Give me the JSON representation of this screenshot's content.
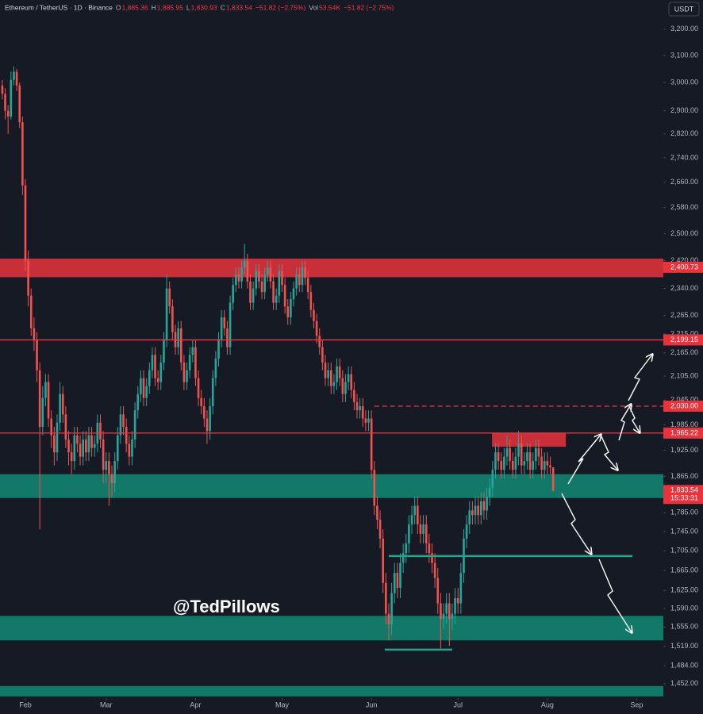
{
  "chart_data": {
    "type": "candlestick",
    "header": [
      {
        "text": "Ethereum / TetherUS · 1D · Binance",
        "color": "#d1d4dc"
      },
      {
        "text": "O",
        "color": "#b2b5be"
      },
      {
        "text": "1,885.36",
        "color": "#f23645"
      },
      {
        "text": "H",
        "color": "#b2b5be"
      },
      {
        "text": "1,885.95",
        "color": "#f23645"
      },
      {
        "text": "L",
        "color": "#b2b5be"
      },
      {
        "text": "1,830.93",
        "color": "#f23645"
      },
      {
        "text": "C",
        "color": "#b2b5be"
      },
      {
        "text": "1,833.54",
        "color": "#f23645"
      },
      {
        "text": "−51.82 (−2.75%)",
        "color": "#f23645"
      },
      {
        "text": "Vol",
        "color": "#b2b5be"
      },
      {
        "text": "53.54K",
        "color": "#f23645"
      },
      {
        "text": "−51.82 (−2.75%)",
        "color": "#f23645"
      }
    ],
    "currency": "USDT",
    "watermark": "@TedPillows",
    "log_scale": true,
    "grid": false,
    "up_color": "#26a69a",
    "down_color": "#ef5350",
    "xlim": [
      -0.8,
      229.2
    ],
    "xticks": [
      {
        "value": 8,
        "label": "Feb"
      },
      {
        "value": 36,
        "label": "Mar"
      },
      {
        "value": 67,
        "label": "Apr"
      },
      {
        "value": 97,
        "label": "May"
      },
      {
        "value": 128,
        "label": "Jun"
      },
      {
        "value": 158,
        "label": "Jul"
      },
      {
        "value": 189,
        "label": "Aug"
      },
      {
        "value": 220,
        "label": "Sep"
      }
    ],
    "ylim": [
      1427,
      3315
    ],
    "yticks": [
      {
        "value": 3200,
        "label": "3,200.00"
      },
      {
        "value": 3100,
        "label": "3,100.00"
      },
      {
        "value": 3000,
        "label": "3,000.00"
      },
      {
        "value": 2900,
        "label": "2,900.00"
      },
      {
        "value": 2820,
        "label": "2,820.00"
      },
      {
        "value": 2740,
        "label": "2,740.00"
      },
      {
        "value": 2660,
        "label": "2,660.00"
      },
      {
        "value": 2580,
        "label": "2,580.00"
      },
      {
        "value": 2500,
        "label": "2,500.00"
      },
      {
        "value": 2420,
        "label": "2,420.00"
      },
      {
        "value": 2340,
        "label": "2,340.00"
      },
      {
        "value": 2265,
        "label": "2,265.00"
      },
      {
        "value": 2215,
        "label": "2,215.00"
      },
      {
        "value": 2165,
        "label": "2,165.00"
      },
      {
        "value": 2105,
        "label": "2,105.00"
      },
      {
        "value": 2045,
        "label": "2,045.00"
      },
      {
        "value": 1985,
        "label": "1,985.00"
      },
      {
        "value": 1925,
        "label": "1,925.00"
      },
      {
        "value": 1865,
        "label": "1,865.00"
      },
      {
        "value": 1785,
        "label": "1,785.00"
      },
      {
        "value": 1745,
        "label": "1,745.00"
      },
      {
        "value": 1705,
        "label": "1,705.00"
      },
      {
        "value": 1665,
        "label": "1,665.00"
      },
      {
        "value": 1625,
        "label": "1,625.00"
      },
      {
        "value": 1590,
        "label": "1,590.00"
      },
      {
        "value": 1555,
        "label": "1,555.00"
      },
      {
        "value": 1519,
        "label": "1,519.00"
      },
      {
        "value": 1484,
        "label": "1,484.00"
      },
      {
        "value": 1452,
        "label": "1,452.00"
      }
    ],
    "zones": [
      {
        "from": 2372,
        "to": 2426,
        "color": "#d8313b"
      },
      {
        "from": 1817,
        "to": 1870,
        "color": "#12806d"
      },
      {
        "from": 1530,
        "to": 1576,
        "color": "#12806d"
      },
      {
        "from": 1430,
        "to": 1448,
        "color": "#12806d"
      },
      {
        "from": 1933,
        "to": 1964,
        "start": 169.8,
        "end": 195.4,
        "color": "#d8313b"
      }
    ],
    "levels": [
      {
        "value": 2199.15,
        "color": "#f23645",
        "style": "solid"
      },
      {
        "value": 2030,
        "color": "#f23645",
        "style": "dashed",
        "start": 129
      },
      {
        "value": 1965.22,
        "color": "#f23645",
        "style": "solid"
      },
      {
        "value": 1694,
        "color": "#1fa58c",
        "style": "solid",
        "start": 134,
        "end": 218.5
      },
      {
        "value": 1513,
        "color": "#1fa58c",
        "style": "solid",
        "start": 132.6,
        "end": 156
      }
    ],
    "price_tags": [
      {
        "value": 2400.73,
        "label": "2,400.73",
        "color": "#e8323c"
      },
      {
        "value": 2199.15,
        "label": "2,199.15",
        "color": "#e8323c"
      },
      {
        "value": 2030,
        "label": "2,030.00",
        "color": "#e8323c"
      },
      {
        "value": 1965.22,
        "label": "1,965.22",
        "color": "#e8323c"
      },
      {
        "value": 1833.54,
        "label": "1,833.54",
        "countdown": "15:33:31",
        "color": "#e8323c"
      }
    ],
    "open": [
      2990,
      2960,
      2900,
      2880,
      3010,
      3040,
      2990,
      2860,
      2650,
      2420,
      2320,
      2230,
      2200,
      2120,
      1980,
      2050,
      2090,
      2000,
      1960,
      1920,
      1990,
      2060,
      2010,
      1950,
      1920,
      1900,
      1960,
      1940,
      1910,
      1950,
      1920,
      1960,
      1930,
      1940,
      1990,
      1950,
      1880,
      1900,
      1870,
      1850,
      1900,
      1960,
      2010,
      1980,
      1940,
      1910,
      1950,
      2020,
      2060,
      2100,
      2050,
      2080,
      2120,
      2160,
      2100,
      2090,
      2140,
      2200,
      2340,
      2290,
      2220,
      2180,
      2230,
      2140,
      2090,
      2120,
      2160,
      2180,
      2100,
      2050,
      2030,
      2000,
      1970,
      2030,
      2100,
      2150,
      2200,
      2260,
      2230,
      2180,
      2300,
      2350,
      2380,
      2360,
      2400,
      2420,
      2360,
      2300,
      2340,
      2390,
      2360,
      2330,
      2380,
      2400,
      2360,
      2300,
      2320,
      2390,
      2350,
      2290,
      2260,
      2310,
      2340,
      2380,
      2350,
      2400,
      2370,
      2330,
      2280,
      2250,
      2210,
      2180,
      2140,
      2100,
      2120,
      2080,
      2090,
      2130,
      2100,
      2060,
      2090,
      2110,
      2070,
      2040,
      2020,
      2030,
      2000,
      1990,
      2000,
      1880,
      1800,
      1770,
      1730,
      1640,
      1580,
      1560,
      1620,
      1660,
      1630,
      1680,
      1700,
      1720,
      1760,
      1780,
      1800,
      1760,
      1740,
      1760,
      1720,
      1700,
      1680,
      1650,
      1600,
      1570,
      1580,
      1600,
      1570,
      1580,
      1610,
      1600,
      1660,
      1730,
      1760,
      1790,
      1780,
      1800,
      1780,
      1810,
      1790,
      1820,
      1840,
      1880,
      1920,
      1900,
      1880,
      1910,
      1930,
      1900,
      1880,
      1910,
      1940,
      1890,
      1900,
      1920,
      1880,
      1900,
      1930,
      1910,
      1880,
      1900,
      1890,
      1885.36
    ],
    "high": [
      3010,
      2980,
      2920,
      3040,
      3060,
      3050,
      3000,
      2880,
      2670,
      2450,
      2340,
      2260,
      2220,
      2140,
      2080,
      2110,
      2110,
      2020,
      1980,
      2010,
      2090,
      2080,
      2030,
      1970,
      1940,
      1980,
      1980,
      1960,
      1970,
      1970,
      1980,
      1980,
      1960,
      2010,
      2010,
      1970,
      1920,
      1920,
      1890,
      1920,
      1980,
      2030,
      2030,
      2000,
      1960,
      1970,
      2040,
      2080,
      2120,
      2120,
      2100,
      2140,
      2180,
      2180,
      2120,
      2160,
      2220,
      2380,
      2360,
      2310,
      2240,
      2250,
      2250,
      2160,
      2140,
      2180,
      2200,
      2200,
      2120,
      2070,
      2050,
      2020,
      2050,
      2120,
      2170,
      2220,
      2280,
      2280,
      2250,
      2320,
      2370,
      2400,
      2400,
      2420,
      2470,
      2440,
      2380,
      2360,
      2410,
      2410,
      2380,
      2400,
      2420,
      2420,
      2380,
      2340,
      2410,
      2410,
      2370,
      2310,
      2330,
      2360,
      2400,
      2400,
      2420,
      2420,
      2390,
      2350,
      2300,
      2270,
      2230,
      2200,
      2160,
      2140,
      2140,
      2110,
      2150,
      2150,
      2120,
      2110,
      2130,
      2130,
      2090,
      2060,
      2050,
      2050,
      2020,
      2020,
      2020,
      1900,
      1820,
      1790,
      1750,
      1660,
      1600,
      1640,
      1680,
      1680,
      1700,
      1720,
      1740,
      1780,
      1800,
      1820,
      1820,
      1780,
      1780,
      1780,
      1740,
      1720,
      1700,
      1670,
      1620,
      1600,
      1620,
      1620,
      1600,
      1630,
      1630,
      1680,
      1750,
      1780,
      1810,
      1810,
      1820,
      1820,
      1830,
      1830,
      1840,
      1860,
      1900,
      1940,
      1940,
      1920,
      1930,
      1960,
      1950,
      1920,
      1930,
      1970,
      1960,
      1920,
      1940,
      1940,
      1920,
      1950,
      1950,
      1930,
      1920,
      1920,
      1910,
      1885.95
    ],
    "low": [
      2940,
      2870,
      2820,
      2870,
      2990,
      2970,
      2840,
      2620,
      2390,
      2290,
      2210,
      2170,
      2090,
      1750,
      1960,
      2030,
      1980,
      1930,
      1890,
      1900,
      1970,
      1990,
      1930,
      1890,
      1870,
      1880,
      1920,
      1890,
      1890,
      1900,
      1900,
      1910,
      1910,
      1920,
      1930,
      1850,
      1850,
      1800,
      1820,
      1830,
      1880,
      1940,
      1960,
      1920,
      1890,
      1890,
      1930,
      2000,
      2040,
      2030,
      2030,
      2060,
      2100,
      2080,
      2070,
      2070,
      2120,
      2180,
      2270,
      2200,
      2160,
      2160,
      2120,
      2070,
      2070,
      2100,
      2140,
      2080,
      2030,
      2010,
      1980,
      1940,
      1950,
      2010,
      2080,
      2130,
      2180,
      2210,
      2160,
      2160,
      2280,
      2330,
      2340,
      2340,
      2380,
      2340,
      2280,
      2280,
      2320,
      2340,
      2310,
      2310,
      2360,
      2340,
      2280,
      2280,
      2300,
      2330,
      2270,
      2240,
      2240,
      2290,
      2320,
      2330,
      2330,
      2350,
      2310,
      2260,
      2230,
      2190,
      2160,
      2120,
      2080,
      2080,
      2060,
      2060,
      2070,
      2080,
      2040,
      2040,
      2070,
      2050,
      2020,
      2000,
      2000,
      1980,
      1970,
      1970,
      1860,
      1780,
      1750,
      1710,
      1620,
      1560,
      1530,
      1540,
      1600,
      1610,
      1610,
      1660,
      1680,
      1700,
      1740,
      1760,
      1740,
      1720,
      1720,
      1700,
      1680,
      1660,
      1630,
      1580,
      1515,
      1550,
      1560,
      1520,
      1550,
      1560,
      1580,
      1580,
      1640,
      1710,
      1740,
      1760,
      1760,
      1760,
      1760,
      1770,
      1770,
      1800,
      1820,
      1860,
      1880,
      1860,
      1860,
      1890,
      1880,
      1860,
      1860,
      1890,
      1870,
      1870,
      1880,
      1860,
      1860,
      1880,
      1890,
      1860,
      1860,
      1870,
      1870,
      1830.93
    ],
    "close": [
      2960,
      2900,
      2880,
      3010,
      3040,
      2990,
      2860,
      2650,
      2420,
      2320,
      2230,
      2200,
      2120,
      1980,
      2050,
      2090,
      2000,
      1960,
      1920,
      1990,
      2060,
      2010,
      1950,
      1920,
      1900,
      1960,
      1940,
      1910,
      1950,
      1920,
      1960,
      1930,
      1940,
      1990,
      1950,
      1880,
      1900,
      1870,
      1850,
      1900,
      1960,
      2010,
      1980,
      1940,
      1910,
      1950,
      2020,
      2060,
      2100,
      2050,
      2080,
      2120,
      2160,
      2100,
      2090,
      2140,
      2200,
      2340,
      2290,
      2220,
      2180,
      2230,
      2140,
      2090,
      2120,
      2160,
      2180,
      2100,
      2050,
      2030,
      2000,
      1970,
      2030,
      2100,
      2150,
      2200,
      2260,
      2230,
      2180,
      2300,
      2350,
      2380,
      2360,
      2400,
      2420,
      2360,
      2300,
      2340,
      2390,
      2360,
      2330,
      2380,
      2400,
      2360,
      2300,
      2320,
      2390,
      2350,
      2290,
      2260,
      2310,
      2340,
      2380,
      2350,
      2400,
      2370,
      2330,
      2280,
      2250,
      2210,
      2180,
      2140,
      2100,
      2120,
      2080,
      2090,
      2130,
      2100,
      2060,
      2090,
      2110,
      2070,
      2040,
      2020,
      2030,
      2000,
      1990,
      2000,
      1880,
      1800,
      1770,
      1730,
      1640,
      1580,
      1560,
      1620,
      1660,
      1630,
      1680,
      1700,
      1720,
      1760,
      1780,
      1800,
      1760,
      1740,
      1760,
      1720,
      1700,
      1680,
      1650,
      1600,
      1570,
      1580,
      1600,
      1570,
      1580,
      1610,
      1600,
      1660,
      1730,
      1760,
      1790,
      1780,
      1800,
      1780,
      1810,
      1790,
      1820,
      1840,
      1880,
      1920,
      1900,
      1880,
      1910,
      1930,
      1900,
      1880,
      1910,
      1940,
      1890,
      1900,
      1920,
      1880,
      1900,
      1930,
      1910,
      1880,
      1900,
      1890,
      1885.36,
      1833.54
    ]
  }
}
